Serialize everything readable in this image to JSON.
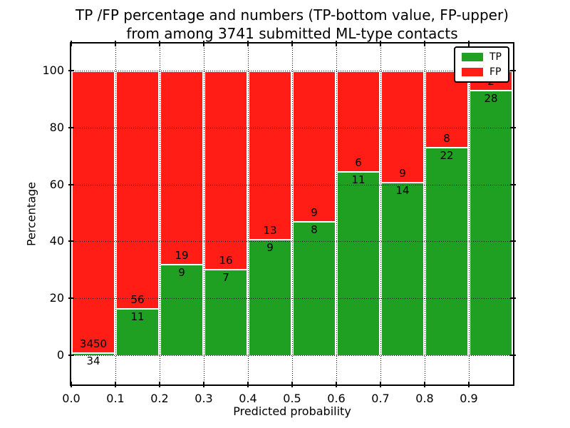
{
  "chart_data": {
    "type": "bar",
    "stacked": true,
    "title_line1": "TP /FP percentage and numbers (TP-bottom value, FP-upper)",
    "title_line2": "from among 3741 submitted ML-type contacts",
    "xlabel": "Predicted probability",
    "ylabel": "Percentage",
    "total_contacts": 3741,
    "bins_start": [
      0.0,
      0.1,
      0.2,
      0.3,
      0.4,
      0.5,
      0.6,
      0.7,
      0.8,
      0.9
    ],
    "bin_width": 0.1,
    "series": [
      {
        "name": "TP",
        "color": "#1fa023",
        "counts": [
          34,
          11,
          9,
          7,
          9,
          8,
          11,
          14,
          22,
          28
        ]
      },
      {
        "name": "FP",
        "color": "#ff1d16",
        "counts": [
          3450,
          56,
          19,
          16,
          13,
          9,
          6,
          9,
          8,
          2
        ]
      }
    ],
    "bar_height_mode": "percent_of_bin_total_stacks_to_100",
    "label_rule": "TP count printed just below stack boundary, FP count just above it",
    "xticks": [
      "0.0",
      "0.1",
      "0.2",
      "0.3",
      "0.4",
      "0.5",
      "0.6",
      "0.7",
      "0.8",
      "0.9"
    ],
    "ytick_values": [
      0,
      20,
      40,
      60,
      80,
      100
    ],
    "xlim": [
      0.0,
      1.0
    ],
    "ylim": [
      -10.3,
      109.6
    ],
    "grid": "dotted-black-both-axes",
    "legend_position": "upper-right"
  }
}
